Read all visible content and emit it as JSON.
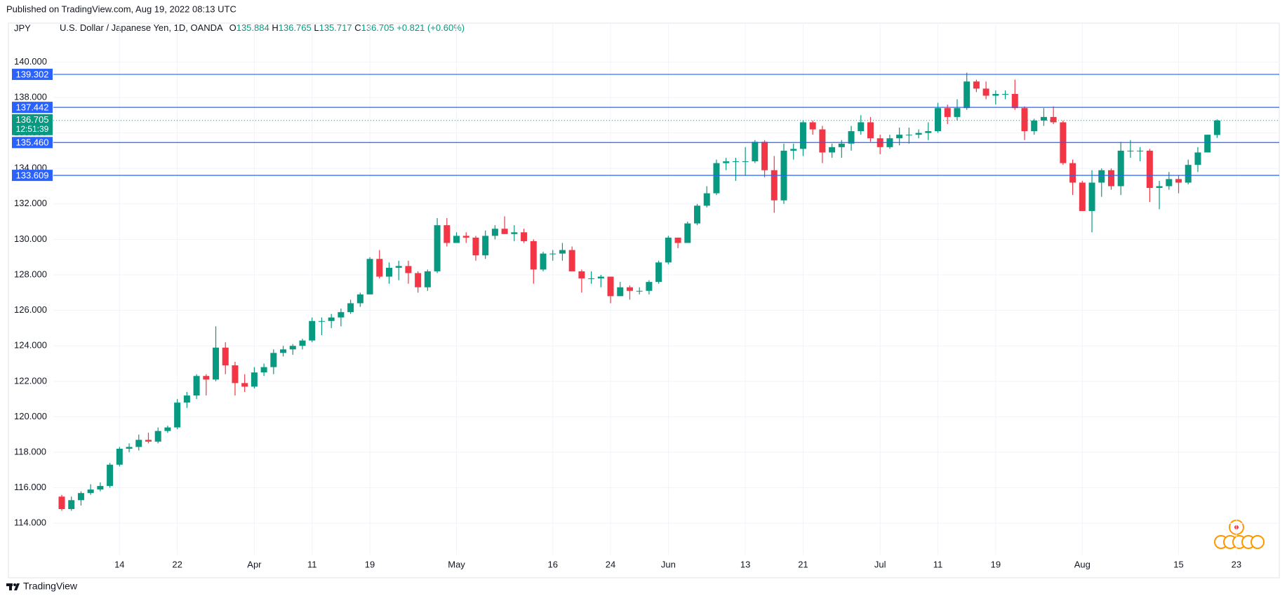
{
  "header": {
    "published": "Published on TradingView.com, Aug 19, 2022 08:13 UTC",
    "footer": "TradingView"
  },
  "chart_data": {
    "type": "candlestick",
    "symbol": "JPY",
    "title": "U.S. Dollar / Japanese Yen, 1D, OANDA",
    "legend": [
      {
        "label": "O",
        "value": "135.884"
      },
      {
        "label": "H",
        "value": "136.765"
      },
      {
        "label": "L",
        "value": "135.717"
      },
      {
        "label": "C",
        "value": "136.705"
      }
    ],
    "change": "+0.821 (+0.60%)",
    "categories": [
      null,
      null,
      null,
      null,
      null,
      null,
      "14",
      null,
      null,
      null,
      null,
      null,
      "22",
      null,
      null,
      null,
      null,
      null,
      null,
      null,
      "Apr",
      null,
      null,
      null,
      null,
      null,
      "11",
      null,
      null,
      null,
      null,
      null,
      "19",
      null,
      null,
      null,
      null,
      null,
      null,
      null,
      null,
      "May",
      null,
      null,
      null,
      null,
      null,
      null,
      null,
      null,
      null,
      "16",
      null,
      null,
      null,
      null,
      null,
      "24",
      null,
      null,
      null,
      null,
      null,
      "Jun",
      null,
      null,
      null,
      null,
      null,
      null,
      null,
      "13",
      null,
      null,
      null,
      null,
      null,
      "21",
      null,
      null,
      null,
      null,
      null,
      null,
      null,
      "Jul",
      null,
      null,
      null,
      null,
      null,
      "11",
      null,
      null,
      null,
      null,
      null,
      "19",
      null,
      null,
      null,
      null,
      null,
      null,
      null,
      null,
      "Aug",
      null,
      null,
      null,
      null,
      null,
      null,
      null,
      null,
      null,
      "15",
      null,
      null,
      null,
      null,
      null,
      "23"
    ],
    "open": [
      115.5,
      114.8,
      115.3,
      115.7,
      115.9,
      116.1,
      117.3,
      118.2,
      118.3,
      118.7,
      118.6,
      119.2,
      119.4,
      120.8,
      121.2,
      122.3,
      122.1,
      123.9,
      122.9,
      121.9,
      121.7,
      122.5,
      122.8,
      123.6,
      123.8,
      124.0,
      124.3,
      125.4,
      125.4,
      125.6,
      125.9,
      126.4,
      126.9,
      128.9,
      127.9,
      128.4,
      128.5,
      128.1,
      127.3,
      128.2,
      130.8,
      129.8,
      130.2,
      130.1,
      129.1,
      130.2,
      130.6,
      130.3,
      130.4,
      129.9,
      128.3,
      129.2,
      129.2,
      129.4,
      128.2,
      127.8,
      127.8,
      127.9,
      126.8,
      127.3,
      127.1,
      127.1,
      127.6,
      128.7,
      130.1,
      129.8,
      130.9,
      131.9,
      132.6,
      134.3,
      134.4,
      134.4,
      134.4,
      135.5,
      133.9,
      132.2,
      135.0,
      135.1,
      136.6,
      136.2,
      134.9,
      135.2,
      135.4,
      136.1,
      136.6,
      135.7,
      135.2,
      135.7,
      135.9,
      135.9,
      136.0,
      136.1,
      137.4,
      136.9,
      137.4,
      138.9,
      138.5,
      138.1,
      138.2,
      138.2,
      137.4,
      136.1,
      136.7,
      136.9,
      136.6,
      134.3,
      133.2,
      131.6,
      133.2,
      133.9,
      133.0,
      135.0,
      135.0,
      135.0,
      132.9,
      133.0,
      133.4,
      133.2,
      134.2,
      134.9,
      135.884,
      null,
      null
    ],
    "high": [
      115.6,
      115.5,
      115.8,
      116.2,
      116.3,
      117.4,
      118.3,
      118.5,
      119.0,
      119.1,
      119.4,
      119.5,
      121.0,
      121.4,
      122.4,
      122.4,
      125.1,
      124.2,
      123.1,
      122.4,
      122.8,
      123.0,
      123.8,
      124.0,
      124.1,
      124.4,
      125.6,
      125.6,
      125.8,
      126.1,
      126.6,
      127.0,
      129.0,
      129.4,
      128.7,
      128.8,
      128.8,
      128.2,
      128.3,
      131.2,
      131.2,
      130.4,
      130.4,
      130.2,
      130.5,
      130.8,
      131.3,
      130.8,
      130.6,
      130.0,
      129.3,
      129.4,
      129.8,
      129.6,
      128.3,
      128.2,
      128.0,
      127.9,
      127.6,
      127.4,
      127.3,
      127.7,
      128.8,
      130.2,
      130.1,
      131.0,
      132.0,
      133.0,
      134.5,
      134.6,
      134.6,
      135.2,
      135.6,
      135.6,
      134.7,
      135.4,
      135.4,
      136.7,
      136.7,
      136.4,
      135.4,
      135.6,
      136.4,
      137.0,
      136.9,
      135.9,
      135.9,
      136.3,
      136.3,
      136.2,
      136.6,
      137.7,
      137.6,
      137.9,
      139.4,
      139.0,
      138.9,
      138.4,
      138.4,
      139.0,
      137.5,
      136.8,
      137.4,
      137.5,
      136.7,
      134.5,
      133.3,
      133.9,
      134.0,
      134.0,
      135.5,
      135.6,
      135.2,
      135.1,
      133.3,
      133.8,
      133.6,
      134.5,
      135.2,
      135.9,
      136.765,
      null,
      null
    ],
    "low": [
      114.7,
      114.7,
      115.0,
      115.6,
      115.8,
      116.0,
      117.2,
      118.0,
      118.1,
      118.5,
      118.5,
      119.1,
      119.3,
      120.5,
      121.0,
      121.2,
      122.0,
      122.4,
      121.2,
      121.4,
      121.6,
      122.3,
      122.4,
      123.4,
      123.5,
      123.8,
      124.2,
      124.6,
      125.0,
      125.1,
      125.8,
      126.2,
      126.9,
      127.8,
      127.5,
      127.7,
      127.5,
      127.0,
      127.1,
      128.1,
      129.6,
      129.8,
      129.8,
      128.8,
      128.9,
      130.0,
      130.3,
      129.9,
      129.8,
      127.5,
      128.2,
      128.8,
      128.8,
      128.2,
      127.0,
      127.5,
      127.3,
      126.4,
      126.8,
      126.6,
      126.9,
      126.9,
      127.5,
      128.6,
      129.5,
      129.8,
      130.8,
      131.8,
      132.5,
      133.9,
      133.3,
      133.6,
      134.3,
      133.5,
      131.5,
      132.0,
      134.5,
      134.7,
      135.9,
      134.3,
      134.6,
      134.6,
      135.0,
      135.9,
      135.5,
      134.8,
      135.1,
      135.3,
      135.4,
      135.7,
      135.6,
      136.0,
      136.5,
      136.7,
      137.3,
      138.3,
      137.9,
      137.6,
      137.9,
      137.3,
      135.6,
      135.9,
      136.4,
      136.5,
      134.2,
      132.5,
      131.6,
      130.4,
      132.4,
      132.8,
      132.5,
      134.6,
      134.4,
      132.1,
      131.7,
      132.8,
      132.6,
      133.1,
      133.8,
      134.9,
      135.717,
      null,
      null
    ],
    "close": [
      114.8,
      115.3,
      115.7,
      115.9,
      116.1,
      117.3,
      118.2,
      118.3,
      118.7,
      118.6,
      119.2,
      119.4,
      120.8,
      121.2,
      122.3,
      122.1,
      123.9,
      122.9,
      121.9,
      121.7,
      122.5,
      122.8,
      123.6,
      123.8,
      124.0,
      124.3,
      125.4,
      125.4,
      125.6,
      125.9,
      126.4,
      126.9,
      128.9,
      127.9,
      128.4,
      128.5,
      128.1,
      127.3,
      128.2,
      130.8,
      129.8,
      130.2,
      130.1,
      129.1,
      130.2,
      130.6,
      130.3,
      130.4,
      129.9,
      128.3,
      129.2,
      129.2,
      129.4,
      128.2,
      127.8,
      127.8,
      127.9,
      126.8,
      127.3,
      127.1,
      127.1,
      127.6,
      128.7,
      130.1,
      129.8,
      130.9,
      131.9,
      132.6,
      134.3,
      134.4,
      134.4,
      134.4,
      135.5,
      133.9,
      132.2,
      135.0,
      135.1,
      136.6,
      136.2,
      134.9,
      135.2,
      135.4,
      136.1,
      136.6,
      135.7,
      135.2,
      135.7,
      135.9,
      135.9,
      136.0,
      136.1,
      137.4,
      136.9,
      137.4,
      138.9,
      138.5,
      138.1,
      138.2,
      138.2,
      137.4,
      136.1,
      136.7,
      136.9,
      136.6,
      134.3,
      133.2,
      131.6,
      133.2,
      133.9,
      133.0,
      135.0,
      135.0,
      135.0,
      132.9,
      133.0,
      133.4,
      133.2,
      134.2,
      134.9,
      135.9,
      136.705,
      null,
      null
    ],
    "up_color": "#089981",
    "down_color": "#f23645",
    "ylim": [
      112.23,
      142.19
    ],
    "yticks": [
      {
        "value": 114,
        "label": "114.000"
      },
      {
        "value": 116,
        "label": "116.000"
      },
      {
        "value": 118,
        "label": "118.000"
      },
      {
        "value": 120,
        "label": "120.000"
      },
      {
        "value": 122,
        "label": "122.000"
      },
      {
        "value": 124,
        "label": "124.000"
      },
      {
        "value": 126,
        "label": "126.000"
      },
      {
        "value": 128,
        "label": "128.000"
      },
      {
        "value": 130,
        "label": "130.000"
      },
      {
        "value": 132,
        "label": "132.000"
      },
      {
        "value": 134,
        "label": "134.000"
      },
      {
        "value": 136,
        "label": "136.000"
      },
      {
        "value": 138,
        "label": "138.000"
      },
      {
        "value": 140,
        "label": "140.000"
      }
    ],
    "grid": true,
    "levels": [
      {
        "value": 139.302,
        "label": "139.302"
      },
      {
        "value": 137.442,
        "label": "137.442"
      },
      {
        "value": 135.46,
        "label": "135.460"
      },
      {
        "value": 133.609,
        "label": "133.609"
      }
    ],
    "level_color": "#2962ff",
    "last_price": {
      "value": 136.705,
      "label": "136.705",
      "countdown": "12:51:39"
    }
  }
}
